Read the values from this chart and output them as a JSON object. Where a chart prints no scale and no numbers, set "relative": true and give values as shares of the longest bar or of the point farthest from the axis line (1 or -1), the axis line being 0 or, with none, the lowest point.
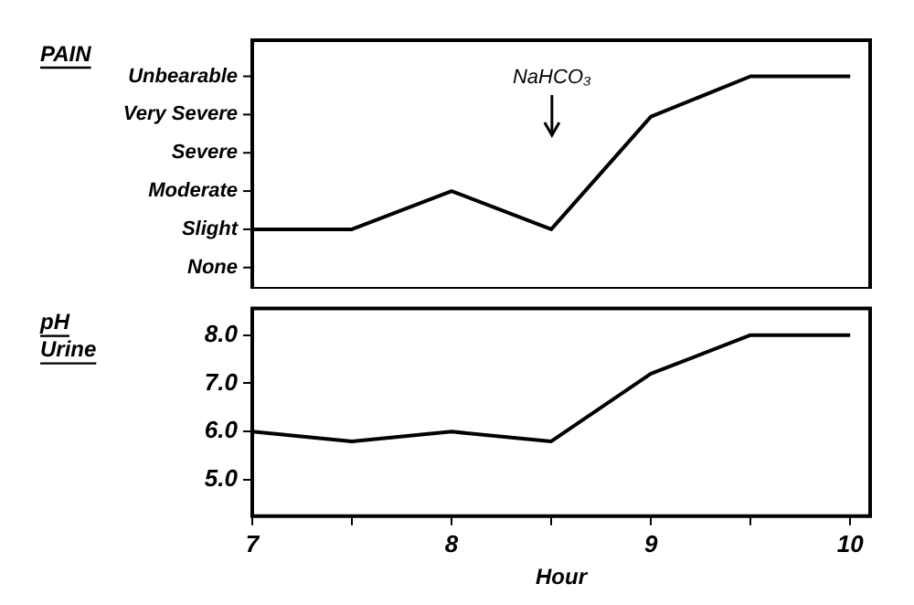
{
  "chart_data": [
    {
      "type": "line",
      "ylabel": "PAIN",
      "x": [
        7,
        7.5,
        8,
        8.5,
        9,
        9.5,
        10
      ],
      "values": [
        0.28,
        0.28,
        0.46,
        0.28,
        0.81,
        1,
        1
      ],
      "relative": true,
      "color": "#000000",
      "xlim": [
        7,
        10.1
      ],
      "xticks": [
        7,
        8,
        9,
        10
      ],
      "annotations": [
        "NaHCO₃",
        "Unbearable",
        "Very Severe",
        "Severe",
        "Moderate",
        "Slight",
        "None"
      ],
      "grid": false,
      "tick_labels": "y",
      "marker": "none",
      "line_style": "solid"
    },
    {
      "type": "line",
      "ylabel": "pH Urine",
      "xlabel": "Hour",
      "x": [
        7,
        7.5,
        8,
        8.5,
        9,
        9.5,
        10
      ],
      "values": [
        6.0,
        5.8,
        6.0,
        5.8,
        7.2,
        8.0,
        8.0
      ],
      "color": "#000000",
      "xlim": [
        7,
        10.1
      ],
      "xticks": [
        7,
        {
          "value": 7.5,
          "label": null
        },
        8,
        {
          "value": 8.5,
          "label": null
        },
        9,
        {
          "value": 9.5,
          "label": null
        },
        10
      ],
      "ylim": [
        4.25,
        8.55
      ],
      "yticks": [
        {
          "value": 5,
          "label": "5.0"
        },
        {
          "value": 6,
          "label": "6.0"
        },
        {
          "value": 7,
          "label": "7.0"
        },
        {
          "value": 8,
          "label": "8.0"
        }
      ],
      "grid": false,
      "marker": "none",
      "line_style": "solid"
    }
  ]
}
